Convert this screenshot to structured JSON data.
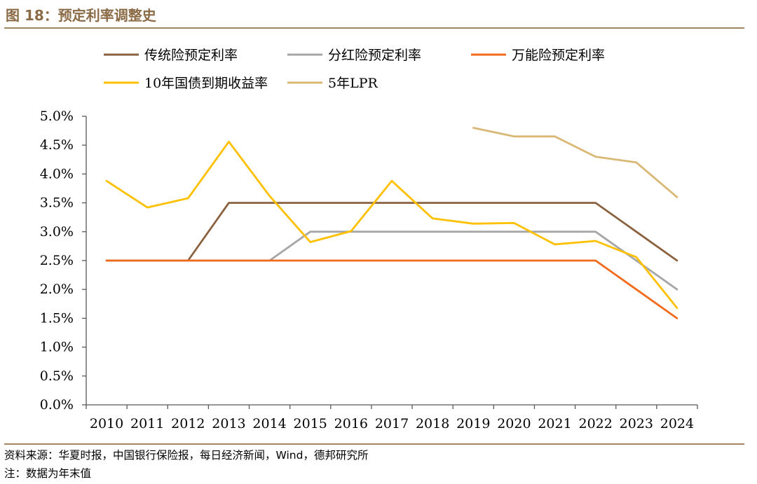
{
  "figure": {
    "title": "图 18：预定利率调整史",
    "source": "资料来源：华夏时报，中国银行保险报，每日经济新闻，Wind，德邦研究所",
    "note": "注：数据为年末值"
  },
  "chart_data": {
    "type": "line",
    "title": "",
    "xlabel": "",
    "ylabel": "",
    "x": [
      "2010",
      "2011",
      "2012",
      "2013",
      "2014",
      "2015",
      "2016",
      "2017",
      "2018",
      "2019",
      "2020",
      "2021",
      "2022",
      "2023",
      "2024"
    ],
    "ylim": [
      0,
      5.0
    ],
    "yticks": [
      "0.0%",
      "0.5%",
      "1.0%",
      "1.5%",
      "2.0%",
      "2.5%",
      "3.0%",
      "3.5%",
      "4.0%",
      "4.5%",
      "5.0%"
    ],
    "grid": false,
    "legend_position": "top",
    "series": [
      {
        "name": "传统险预定利率",
        "color": "#8B6240",
        "values": [
          2.5,
          2.5,
          2.5,
          3.5,
          3.5,
          3.5,
          3.5,
          3.5,
          3.5,
          3.5,
          3.5,
          3.5,
          3.5,
          3.0,
          2.5
        ]
      },
      {
        "name": "分红险预定利率",
        "color": "#A6A6A6",
        "values": [
          2.5,
          2.5,
          2.5,
          2.5,
          2.5,
          3.0,
          3.0,
          3.0,
          3.0,
          3.0,
          3.0,
          3.0,
          3.0,
          2.5,
          2.0
        ]
      },
      {
        "name": "万能险预定利率",
        "color": "#F26A1B",
        "values": [
          2.5,
          2.5,
          2.5,
          2.5,
          2.5,
          2.5,
          2.5,
          2.5,
          2.5,
          2.5,
          2.5,
          2.5,
          2.5,
          2.0,
          1.5
        ]
      },
      {
        "name": "10年国债到期收益率",
        "color": "#FFC000",
        "values": [
          3.88,
          3.42,
          3.58,
          4.56,
          3.62,
          2.82,
          3.01,
          3.88,
          3.23,
          3.14,
          3.15,
          2.78,
          2.84,
          2.56,
          1.68
        ]
      },
      {
        "name": "5年LPR",
        "color": "#D8B874",
        "values": [
          null,
          null,
          null,
          null,
          null,
          null,
          null,
          null,
          null,
          4.8,
          4.65,
          4.65,
          4.3,
          4.2,
          3.6
        ]
      }
    ]
  }
}
